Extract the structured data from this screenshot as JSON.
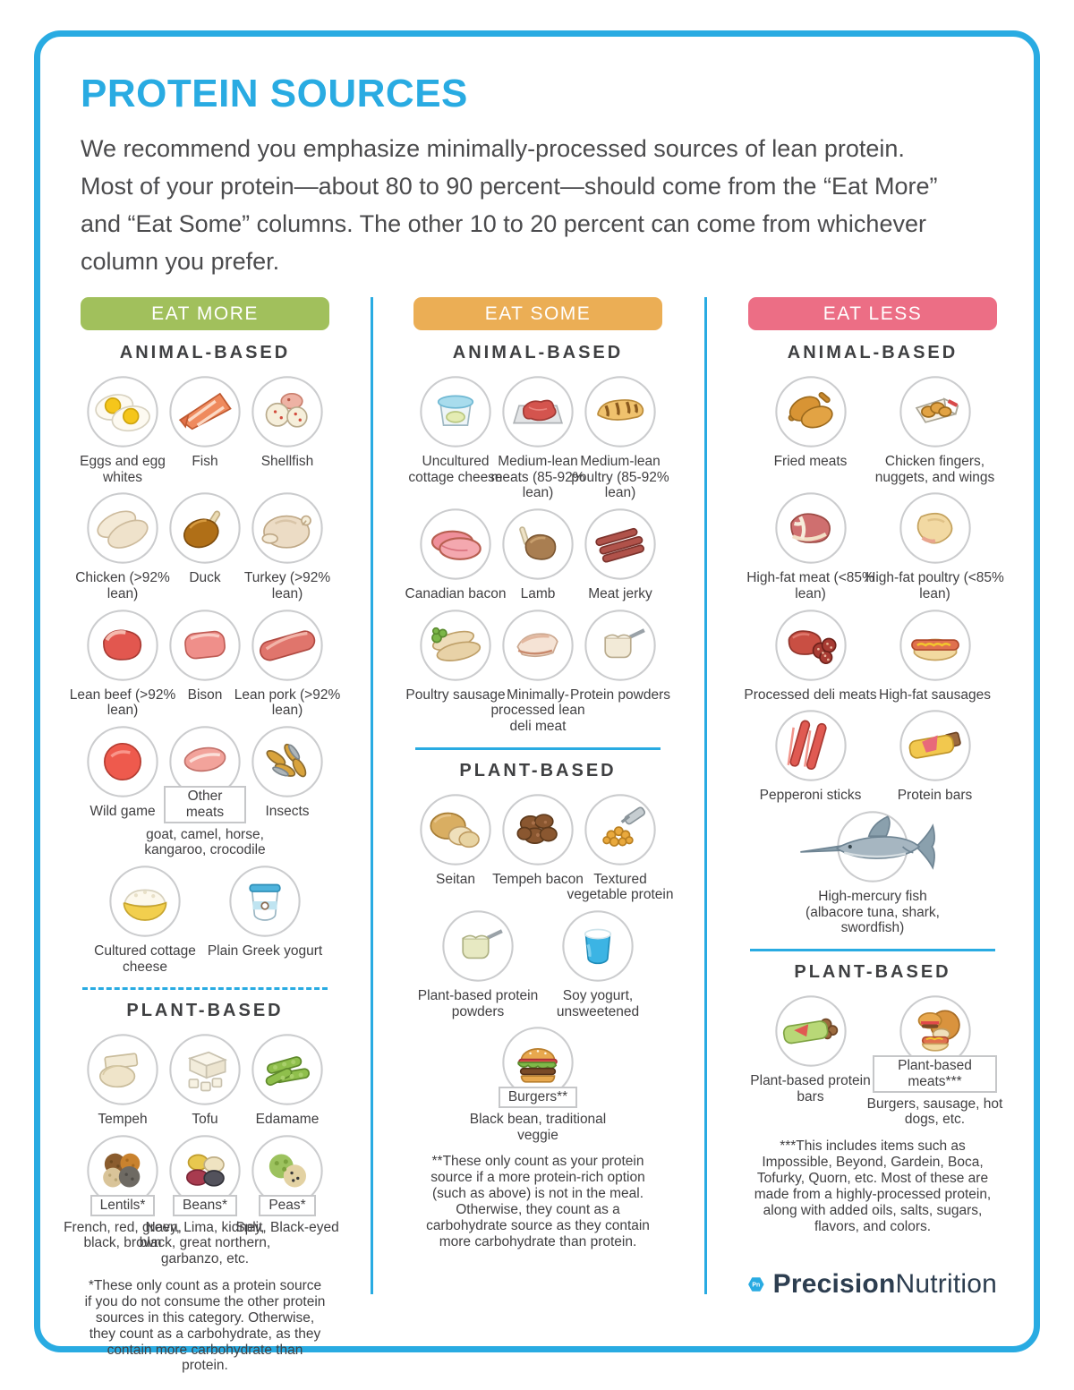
{
  "header": {
    "title": "PROTEIN SOURCES",
    "intro": "We recommend you emphasize minimally-processed sources of lean protein. Most of your protein—about 80 to 90 percent—should come from the “Eat More” and “Eat Some” columns. The other 10 to 20 percent can come from whichever column you prefer."
  },
  "colors": {
    "accent_blue": "#29abe2",
    "eat_more_green": "#a1c05c",
    "eat_some_orange": "#ebae55",
    "eat_less_pink": "#ec6e85",
    "text_dark": "#414042"
  },
  "brand": {
    "monogram": "Pn",
    "name_bold": "Precision",
    "name_regular": "Nutrition"
  },
  "columns": [
    {
      "id": "eat-more",
      "header": "EAT MORE",
      "header_color": "#a1c05c",
      "divider": "dashed",
      "per_row": 3,
      "sections": [
        {
          "title": "ANIMAL-BASED",
          "rows": [
            [
              {
                "icon": "eggs",
                "label": "Eggs and egg whites"
              },
              {
                "icon": "fish",
                "label": "Fish"
              },
              {
                "icon": "shellfish",
                "label": "Shellfish"
              }
            ],
            [
              {
                "icon": "chicken-breast",
                "label": "Chicken (>92% lean)"
              },
              {
                "icon": "duck",
                "label": "Duck"
              },
              {
                "icon": "turkey",
                "label": "Turkey (>92% lean)"
              }
            ],
            [
              {
                "icon": "lean-beef",
                "label": "Lean beef (>92% lean)"
              },
              {
                "icon": "bison",
                "label": "Bison"
              },
              {
                "icon": "lean-pork",
                "label": "Lean pork (>92% lean)"
              }
            ],
            [
              {
                "icon": "wild-game",
                "label": "Wild game"
              },
              {
                "icon": "other-meats",
                "boxed_label": "Other meats",
                "sublabel": "goat, camel, horse, kangaroo, crocodile"
              },
              {
                "icon": "insects",
                "label": "Insects"
              }
            ],
            [
              {
                "icon": "cottage-cheese",
                "label": "Cultured cottage cheese"
              },
              {
                "icon": "greek-yogurt",
                "label": "Plain Greek yogurt"
              }
            ]
          ]
        },
        {
          "title": "PLANT-BASED",
          "rows": [
            [
              {
                "icon": "tempeh",
                "label": "Tempeh"
              },
              {
                "icon": "tofu",
                "label": "Tofu"
              },
              {
                "icon": "edamame",
                "label": "Edamame"
              }
            ],
            [
              {
                "icon": "lentils",
                "boxed_label": "Lentils*",
                "sublabel": "French, red, green, black, brown"
              },
              {
                "icon": "beans",
                "boxed_label": "Beans*",
                "sublabel": "Navy, Lima, kidney, black, great northern, garbanzo, etc."
              },
              {
                "icon": "peas",
                "boxed_label": "Peas*",
                "sublabel": "Split, Black-eyed"
              }
            ]
          ]
        }
      ],
      "footnote": "*These only count as a protein source if you do not consume the other protein sources in this category. Otherwise, they count as a carbohydrate, as they contain more carbohydrate than protein."
    },
    {
      "id": "eat-some",
      "header": "EAT SOME",
      "header_color": "#ebae55",
      "divider": "solid",
      "per_row": 3,
      "sections": [
        {
          "title": "ANIMAL-BASED",
          "rows": [
            [
              {
                "icon": "uncultured-cottage-cheese",
                "label": "Uncultured cottage cheese"
              },
              {
                "icon": "medium-lean-meats",
                "label": "Medium-lean meats (85-92% lean)"
              },
              {
                "icon": "medium-lean-poultry",
                "label": "Medium-lean poultry (85-92% lean)"
              }
            ],
            [
              {
                "icon": "canadian-bacon",
                "label": "Canadian bacon"
              },
              {
                "icon": "lamb",
                "label": "Lamb"
              },
              {
                "icon": "meat-jerky",
                "label": "Meat jerky"
              }
            ],
            [
              {
                "icon": "poultry-sausage",
                "label": "Poultry sausage"
              },
              {
                "icon": "deli-meat",
                "label": "Minimally-processed lean deli meat"
              },
              {
                "icon": "protein-powders",
                "label": "Protein powders"
              }
            ]
          ]
        },
        {
          "title": "PLANT-BASED",
          "rows": [
            [
              {
                "icon": "seitan",
                "label": "Seitan"
              },
              {
                "icon": "tempeh-bacon",
                "label": "Tempeh bacon"
              },
              {
                "icon": "tvp",
                "label": "Textured vegetable protein"
              }
            ],
            [
              {
                "icon": "pb-protein-powders",
                "label": "Plant-based protein powders"
              },
              {
                "icon": "soy-yogurt",
                "label": "Soy yogurt, unsweetened"
              }
            ],
            [
              {
                "icon": "burger",
                "boxed_label": "Burgers**",
                "sublabel": "Black bean, traditional veggie"
              }
            ]
          ]
        }
      ],
      "footnote": "**These only count as your protein source if a more protein-rich option (such as above) is not in the meal. Otherwise, they count as a carbohydrate source as they contain more carbohydrate than protein."
    },
    {
      "id": "eat-less",
      "header": "EAT LESS",
      "header_color": "#ec6e85",
      "divider": "solid",
      "per_row": 2,
      "sections": [
        {
          "title": "ANIMAL-BASED",
          "rows": [
            [
              {
                "icon": "fried-meats",
                "label": "Fried meats"
              },
              {
                "icon": "chicken-fingers",
                "label": "Chicken fingers, nuggets, and wings"
              }
            ],
            [
              {
                "icon": "high-fat-meat",
                "label": "High-fat meat (<85% lean)"
              },
              {
                "icon": "high-fat-poultry",
                "label": "High-fat poultry (<85% lean)"
              }
            ],
            [
              {
                "icon": "processed-deli-meats",
                "label": "Processed deli meats"
              },
              {
                "icon": "high-fat-sausages",
                "label": "High-fat sausages"
              }
            ],
            [
              {
                "icon": "pepperoni-sticks",
                "label": "Pepperoni sticks"
              },
              {
                "icon": "protein-bars",
                "label": "Protein bars"
              }
            ],
            [
              {
                "icon": "swordfish",
                "label": "High-mercury fish (albacore tuna, shark, swordfish)",
                "wide": true
              }
            ]
          ]
        },
        {
          "title": "PLANT-BASED",
          "rows": [
            [
              {
                "icon": "pb-protein-bars",
                "label": "Plant-based protein bars"
              },
              {
                "icon": "pb-meats",
                "boxed_label": "Plant-based meats***",
                "sublabel": "Burgers, sausage, hot dogs, etc."
              }
            ]
          ]
        }
      ],
      "footnote": "***This includes items such as Impossible, Beyond, Gardein, Boca, Tofurky, Quorn, etc. Most of these are made from a highly-processed protein, along with added oils, salts, sugars, flavors, and colors."
    }
  ]
}
